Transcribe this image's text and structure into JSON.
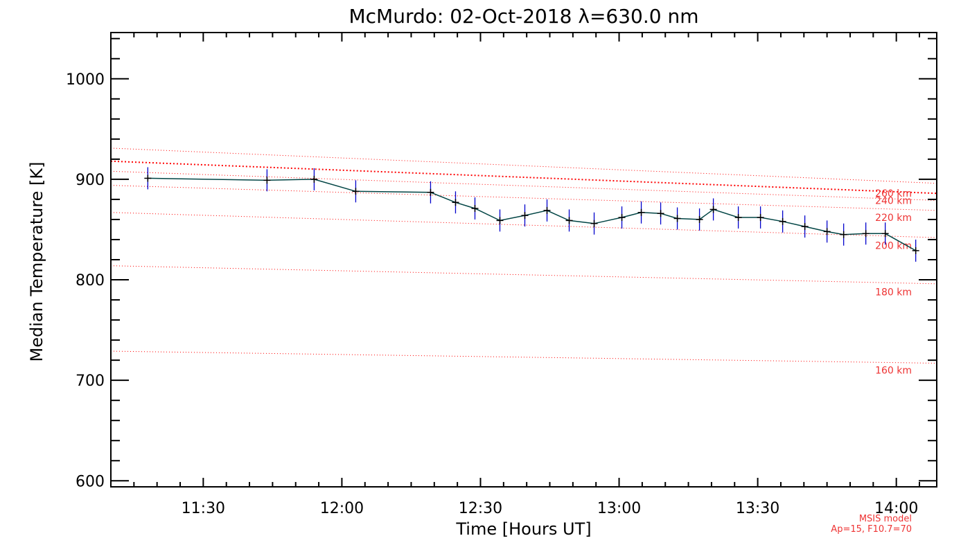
{
  "chart_data": {
    "type": "line",
    "title": "McMurdo: 02-Oct-2018 λ=630.0 nm",
    "xlabel": "Time [Hours UT]",
    "ylabel": "Median Temperature [K]",
    "xlim_hours": [
      11.1667,
      14.1458
    ],
    "ylim": [
      594,
      1046
    ],
    "x_ticks": [
      {
        "value": 11.5,
        "label": "11:30"
      },
      {
        "value": 12.0,
        "label": "12:00"
      },
      {
        "value": 12.5,
        "label": "12:30"
      },
      {
        "value": 13.0,
        "label": "13:00"
      },
      {
        "value": 13.5,
        "label": "13:30"
      },
      {
        "value": 14.0,
        "label": "14:00"
      }
    ],
    "y_ticks": [
      600,
      700,
      800,
      900,
      1000
    ],
    "series": [
      {
        "name": "Median Temperature",
        "color": "#000000",
        "line_color": "#004444",
        "error_color": "#0000cc",
        "points": [
          {
            "t": 11.3,
            "y": 901,
            "err": 11
          },
          {
            "t": 11.73,
            "y": 899,
            "err": 11
          },
          {
            "t": 11.9,
            "y": 900,
            "err": 11
          },
          {
            "t": 12.05,
            "y": 888,
            "err": 11
          },
          {
            "t": 12.32,
            "y": 887,
            "err": 11
          },
          {
            "t": 12.41,
            "y": 877,
            "err": 11
          },
          {
            "t": 12.48,
            "y": 871,
            "err": 11
          },
          {
            "t": 12.57,
            "y": 859,
            "err": 11
          },
          {
            "t": 12.66,
            "y": 864,
            "err": 11
          },
          {
            "t": 12.74,
            "y": 869,
            "err": 11
          },
          {
            "t": 12.82,
            "y": 859,
            "err": 11
          },
          {
            "t": 12.91,
            "y": 856,
            "err": 11
          },
          {
            "t": 13.01,
            "y": 862,
            "err": 11
          },
          {
            "t": 13.08,
            "y": 867,
            "err": 11
          },
          {
            "t": 13.15,
            "y": 866,
            "err": 11
          },
          {
            "t": 13.21,
            "y": 861,
            "err": 11
          },
          {
            "t": 13.29,
            "y": 860,
            "err": 11
          },
          {
            "t": 13.34,
            "y": 870,
            "err": 11
          },
          {
            "t": 13.43,
            "y": 862,
            "err": 11
          },
          {
            "t": 13.51,
            "y": 862,
            "err": 11
          },
          {
            "t": 13.59,
            "y": 858,
            "err": 11
          },
          {
            "t": 13.67,
            "y": 853,
            "err": 11
          },
          {
            "t": 13.75,
            "y": 848,
            "err": 11
          },
          {
            "t": 13.81,
            "y": 845,
            "err": 11
          },
          {
            "t": 13.89,
            "y": 846,
            "err": 11
          },
          {
            "t": 13.96,
            "y": 846,
            "err": 11
          },
          {
            "t": 14.07,
            "y": 829,
            "err": 11
          }
        ]
      }
    ],
    "msis_lines": [
      {
        "label": "160 km",
        "y_start": 729,
        "y_end": 717,
        "label_y": 710,
        "bold": false
      },
      {
        "label": "180 km",
        "y_start": 814,
        "y_end": 796,
        "label_y": 788,
        "bold": false
      },
      {
        "label": "200 km",
        "y_start": 867,
        "y_end": 842,
        "label_y": 834,
        "bold": false
      },
      {
        "label": "220 km",
        "y_start": 894,
        "y_end": 869,
        "label_y": 862,
        "bold": false
      },
      {
        "label": "240 km",
        "y_start": 908,
        "y_end": 879,
        "label_y": 879,
        "bold": false
      },
      {
        "label": "260 km",
        "y_start": 918,
        "y_end": 886,
        "label_y": 886,
        "bold": true
      },
      {
        "label": "",
        "y_start": 931,
        "y_end": 896,
        "label_y": 0,
        "bold": false
      }
    ],
    "annotations": {
      "model_name": "MSIS model",
      "model_params": "Ap=15, F10.7=70"
    },
    "colors": {
      "msis": "#ff0000",
      "msis_text": "#ee3333",
      "axis": "#000000"
    }
  }
}
